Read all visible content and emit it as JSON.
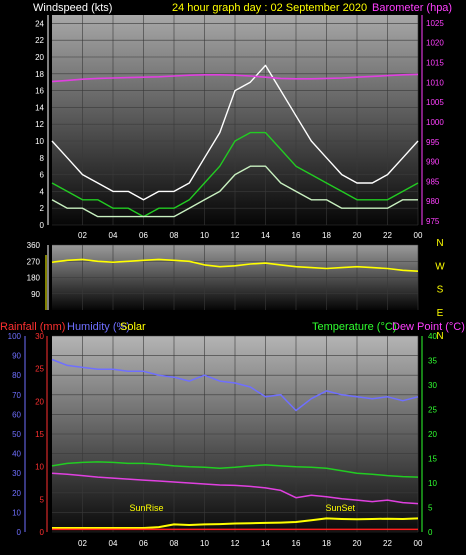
{
  "chart_data": [
    {
      "type": "line",
      "title": "24 hour graph day : 02 September 2020",
      "left_label": "Windspeed (kts)",
      "right_label": "Barometer (hpa)",
      "x_ticks": [
        "02",
        "04",
        "06",
        "08",
        "10",
        "12",
        "14",
        "16",
        "18",
        "20",
        "22",
        "00"
      ],
      "left_ticks": [
        "0",
        "2",
        "4",
        "6",
        "8",
        "10",
        "12",
        "14",
        "16",
        "18",
        "20",
        "22",
        "24"
      ],
      "right_ticks": [
        "975",
        "980",
        "985",
        "990",
        "995",
        "1000",
        "1005",
        "1010",
        "1015",
        "1020",
        "1025"
      ],
      "ylim_left": [
        0,
        25
      ],
      "ylim_right": [
        974,
        1027
      ],
      "hours": [
        0,
        1,
        2,
        3,
        4,
        5,
        6,
        7,
        8,
        9,
        10,
        11,
        12,
        13,
        14,
        15,
        16,
        17,
        18,
        19,
        20,
        21,
        22,
        23,
        24
      ],
      "series": [
        {
          "color": "#ffffff",
          "values": [
            10,
            8,
            6,
            5,
            4,
            4,
            3,
            4,
            4,
            5,
            8,
            11,
            16,
            17,
            19,
            16,
            13,
            10,
            8,
            6,
            5,
            5,
            6,
            8,
            10
          ]
        },
        {
          "color": "#22cc22",
          "values": [
            5,
            4,
            3,
            3,
            2,
            2,
            1,
            2,
            2,
            3,
            5,
            7,
            10,
            11,
            11,
            9,
            7,
            6,
            5,
            4,
            3,
            3,
            3,
            4,
            5
          ]
        },
        {
          "color": "#c8f0c0",
          "values": [
            3,
            2,
            2,
            1,
            1,
            1,
            1,
            1,
            1,
            2,
            3,
            4,
            6,
            7,
            7,
            5,
            4,
            3,
            3,
            2,
            2,
            2,
            2,
            3,
            3
          ]
        },
        {
          "color": "#e040e0",
          "axis": "right",
          "values": [
            1010.2,
            1010.5,
            1010.8,
            1011.0,
            1011.1,
            1011.2,
            1011.3,
            1011.4,
            1011.6,
            1011.8,
            1011.9,
            1011.9,
            1011.8,
            1011.6,
            1011.3,
            1011.0,
            1010.9,
            1010.9,
            1011.0,
            1011.1,
            1011.3,
            1011.5,
            1011.7,
            1011.9,
            1012.0
          ]
        }
      ]
    },
    {
      "type": "line",
      "left_ticks": [
        "360",
        "270",
        "180",
        "90"
      ],
      "right_compass": [
        "N",
        "W",
        "S",
        "E",
        "N"
      ],
      "ylim": [
        0,
        360
      ],
      "hours": [
        0,
        1,
        2,
        3,
        4,
        5,
        6,
        7,
        8,
        9,
        10,
        11,
        12,
        13,
        14,
        15,
        16,
        17,
        18,
        19,
        20,
        21,
        22,
        23,
        24
      ],
      "series": [
        {
          "color": "#ffff00",
          "values": [
            265,
            275,
            280,
            270,
            265,
            270,
            275,
            280,
            275,
            270,
            250,
            240,
            245,
            255,
            260,
            250,
            240,
            235,
            230,
            235,
            240,
            235,
            230,
            220,
            215
          ]
        }
      ]
    },
    {
      "type": "line",
      "label_rainfall": "Rainfall (mm)",
      "label_humidity": "Humidity (%)",
      "label_solar": "Solar",
      "label_temperature": "Temperature (°C)",
      "label_dewpoint": "Dew Point (°C)",
      "x_ticks": [
        "02",
        "04",
        "06",
        "08",
        "10",
        "12",
        "14",
        "16",
        "18",
        "20",
        "22",
        "00"
      ],
      "humidity_ticks": [
        "0",
        "10",
        "20",
        "30",
        "40",
        "50",
        "60",
        "70",
        "80",
        "90",
        "100"
      ],
      "rain_ticks": [
        "0",
        "5",
        "10",
        "15",
        "20",
        "25",
        "30"
      ],
      "temp_ticks": [
        "0",
        "5",
        "10",
        "15",
        "20",
        "25",
        "30",
        "35",
        "40"
      ],
      "ylim_humidity": [
        0,
        100
      ],
      "ylim_temperature": [
        0,
        40
      ],
      "annotations": [
        {
          "text": "SunRise",
          "hour": 6.2
        },
        {
          "text": "SunSet",
          "hour": 18.9
        }
      ],
      "hours": [
        0,
        1,
        2,
        3,
        4,
        5,
        6,
        7,
        8,
        9,
        10,
        11,
        12,
        13,
        14,
        15,
        16,
        17,
        18,
        19,
        20,
        21,
        22,
        23,
        24
      ],
      "series": [
        {
          "color": "#6f6fff",
          "axis": "humidity",
          "values": [
            88,
            85,
            84,
            83,
            83,
            82,
            82,
            80,
            79,
            77,
            80,
            77,
            76,
            74,
            69,
            70,
            62,
            68,
            72,
            70,
            69,
            68,
            69,
            67,
            69
          ]
        },
        {
          "color": "#22cc22",
          "axis": "temperature",
          "values": [
            13.5,
            14,
            14.2,
            14.3,
            14.2,
            14,
            14,
            13.8,
            13.5,
            13.3,
            13.2,
            13,
            13.2,
            13.5,
            13.7,
            13.5,
            13.3,
            13.2,
            13,
            12.5,
            12,
            11.8,
            11.5,
            11.3,
            11.2
          ]
        },
        {
          "color": "#e040e0",
          "axis": "temperature",
          "values": [
            12,
            11.8,
            11.5,
            11.2,
            11,
            10.8,
            10.6,
            10.4,
            10.2,
            10,
            9.8,
            9.6,
            9.5,
            9.3,
            9,
            8.5,
            7,
            7.5,
            7.2,
            6.8,
            6.5,
            6.2,
            6.5,
            6,
            5.8
          ]
        },
        {
          "color": "#ffff00",
          "axis": "solar",
          "values": [
            0,
            0,
            0,
            0,
            0,
            0,
            0,
            0.3,
            1.2,
            1.0,
            1.2,
            1.3,
            1.5,
            1.6,
            1.7,
            1.8,
            2,
            2.6,
            3.2,
            3,
            2.9,
            3,
            3.1,
            3,
            3.2
          ]
        },
        {
          "color": "#ff2020",
          "axis": "rain",
          "values": [
            0.4,
            0.4,
            0.4,
            0.4,
            0.4,
            0.4,
            0.4,
            0.4,
            0.4,
            0.4,
            0.4,
            0.4,
            0.4,
            0.4,
            0.4,
            0.4,
            0.4,
            0.4,
            0.4,
            0.4,
            0.4,
            0.4,
            0.4,
            0.4,
            0.4
          ]
        }
      ]
    }
  ],
  "colors": {
    "background": "#000000",
    "title": "#ffff00",
    "windspeed_label": "#ffffff",
    "barometer_label": "#ff40ff",
    "rainfall_label": "#ff3030",
    "humidity_label": "#6f6fff",
    "solar_label": "#ffff00",
    "temperature_label": "#30ff30",
    "dewpoint_label": "#ff40ff"
  }
}
